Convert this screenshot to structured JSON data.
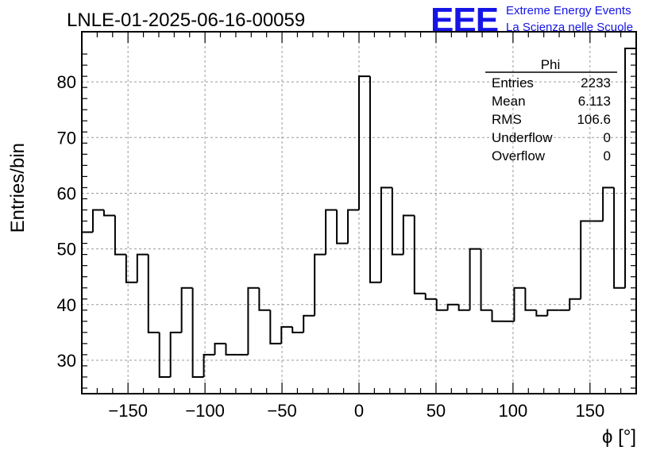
{
  "header": {
    "title": "LNLE-01-2025-06-16-00059",
    "logo_text": "EEE",
    "logo_line1": "Extreme Energy Events",
    "logo_line2": "La Scienza nelle Scuole",
    "logo_color": "#1515e6"
  },
  "stats_box": {
    "name": "Phi",
    "rows": [
      {
        "label": "Entries",
        "value": "2233"
      },
      {
        "label": "Mean",
        "value": "6.113"
      },
      {
        "label": "RMS",
        "value": "106.6"
      },
      {
        "label": "Underflow",
        "value": "0"
      },
      {
        "label": "Overflow",
        "value": "0"
      }
    ]
  },
  "chart_data": {
    "type": "histogram",
    "xlabel": "ϕ [°]",
    "ylabel": "Entries/bin",
    "xlim": [
      -180,
      180
    ],
    "ylim": [
      24,
      89
    ],
    "x_ticks": [
      -150,
      -100,
      -50,
      0,
      50,
      100,
      150
    ],
    "x_tick_labels": [
      "−150",
      "−100",
      "−50",
      "0",
      "50",
      "100",
      "150"
    ],
    "y_ticks": [
      30,
      40,
      50,
      60,
      70,
      80
    ],
    "y_tick_labels": [
      "30",
      "40",
      "50",
      "60",
      "70",
      "80"
    ],
    "grid": true,
    "bin_width": 7.2,
    "bin_edges_start": -180,
    "values": [
      53,
      57,
      56,
      49,
      44,
      49,
      35,
      27,
      35,
      43,
      27,
      31,
      33,
      31,
      31,
      43,
      39,
      33,
      36,
      35,
      38,
      49,
      57,
      51,
      57,
      81,
      44,
      61,
      49,
      56,
      42,
      41,
      39,
      40,
      39,
      50,
      39,
      37,
      37,
      43,
      39,
      38,
      39,
      39,
      41,
      55,
      55,
      61,
      43,
      86
    ],
    "line_color": "#000000"
  }
}
